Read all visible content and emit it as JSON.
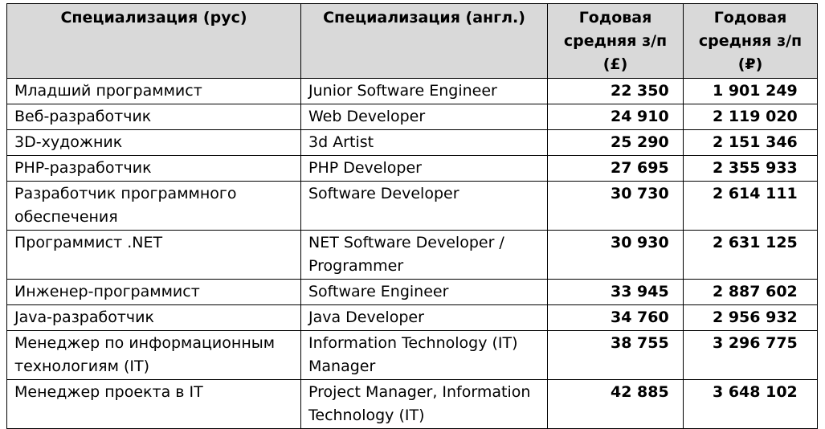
{
  "table": {
    "headers": [
      "Специализация (рус)",
      "Специализация (англ.)",
      "Годовая средняя з/п (£)",
      "Годовая средняя з/п (₽)"
    ],
    "rows": [
      {
        "ru": "Младший программист",
        "en": "Junior Software Engineer",
        "gbp": "22 350",
        "rub": "1 901 249"
      },
      {
        "ru": "Веб-разработчик",
        "en": "Web Developer",
        "gbp": "24 910",
        "rub": "2 119 020"
      },
      {
        "ru": "3D-художник",
        "en": "3d Artist",
        "gbp": "25 290",
        "rub": "2 151 346"
      },
      {
        "ru": "PHP-разработчик",
        "en": "PHP Developer",
        "gbp": "27 695",
        "rub": "2 355 933"
      },
      {
        "ru": "Разработчик программного обеспечения",
        "en": "Software Developer",
        "gbp": "30 730",
        "rub": "2 614 111"
      },
      {
        "ru": "Программист .NET",
        "en": "NET Software Developer / Programmer",
        "gbp": "30 930",
        "rub": "2 631 125"
      },
      {
        "ru": "Инженер-программист",
        "en": "Software Engineer",
        "gbp": "33 945",
        "rub": "2 887 602"
      },
      {
        "ru": "Java-разработчик",
        "en": "Java Developer",
        "gbp": "34 760",
        "rub": "2 956 932"
      },
      {
        "ru": "Менеджер по информационным технологиям (IT)",
        "en": "Information Technology (IT) Manager",
        "gbp": "38 755",
        "rub": "3 296 775"
      },
      {
        "ru": "Менеджер проекта в IT",
        "en": "Project Manager, Information Technology (IT)",
        "gbp": "42 885",
        "rub": "3 648 102"
      }
    ]
  }
}
